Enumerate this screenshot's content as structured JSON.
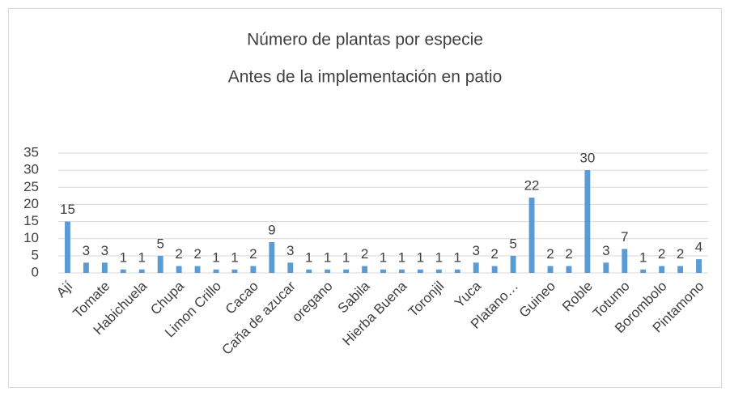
{
  "chart_data": {
    "type": "bar",
    "title": "Número de plantas por especie",
    "subtitle": "Antes de la implementación en patio",
    "categories": [
      "Ají",
      null,
      "Tomate",
      null,
      "Habichuela",
      null,
      "Chupa",
      null,
      "Limon Crillo",
      null,
      "Cacao",
      null,
      "Caña de azucar",
      null,
      "oregano",
      null,
      "Sabila",
      null,
      "Hierba Buena",
      null,
      "Toronjil",
      null,
      "Yuca",
      null,
      "Platano…",
      null,
      "Guineo",
      null,
      "Roble",
      null,
      "Totumo",
      null,
      "Borombolo",
      null,
      "Pintamono"
    ],
    "values": [
      15,
      3,
      3,
      1,
      1,
      5,
      2,
      2,
      1,
      1,
      2,
      9,
      3,
      1,
      1,
      1,
      2,
      1,
      1,
      1,
      1,
      1,
      3,
      2,
      5,
      22,
      2,
      2,
      30,
      3,
      7,
      1,
      2,
      2,
      4
    ],
    "color": "#5b9bd5",
    "ylim": [
      0,
      35
    ],
    "yticks": [
      0,
      5,
      10,
      15,
      20,
      25,
      30,
      35
    ],
    "grid": true
  }
}
